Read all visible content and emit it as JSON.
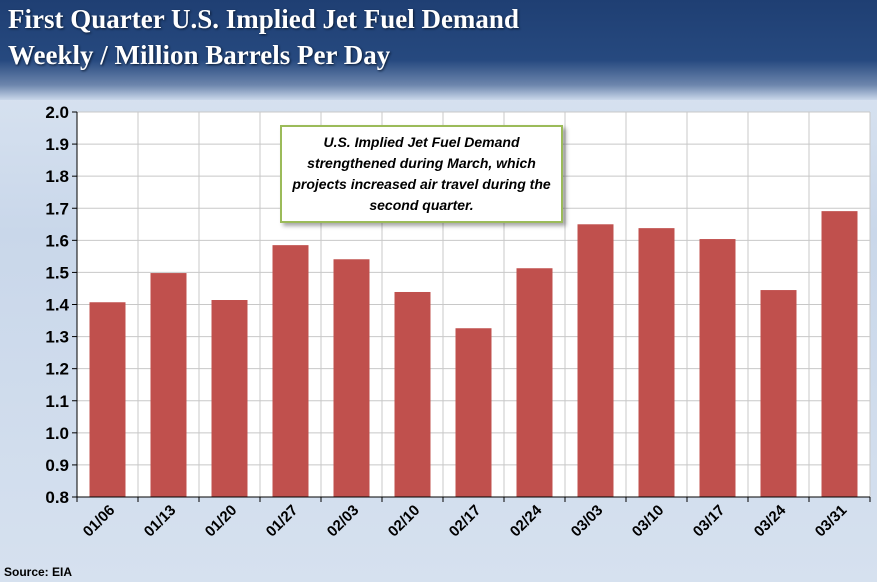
{
  "header": {
    "title": "First Quarter U.S. Implied Jet Fuel Demand",
    "subtitle": "Weekly / Million Barrels Per Day"
  },
  "annotation": "U.S. Implied Jet Fuel Demand strengthened during March, which projects increased air travel during the second quarter.",
  "source": "Source: EIA",
  "chart_data": {
    "type": "bar",
    "title": "First Quarter U.S. Implied Jet Fuel Demand",
    "subtitle": "Weekly / Million Barrels Per Day",
    "categories": [
      "01/06",
      "01/13",
      "01/20",
      "01/27",
      "02/03",
      "02/10",
      "02/17",
      "02/24",
      "03/03",
      "03/10",
      "03/17",
      "03/24",
      "03/31"
    ],
    "values": [
      1.407,
      1.498,
      1.414,
      1.585,
      1.541,
      1.439,
      1.326,
      1.513,
      1.65,
      1.638,
      1.604,
      1.445,
      1.691
    ],
    "ylim": [
      0.8,
      2.0
    ],
    "yticks": [
      "0.8",
      "0.9",
      "1.0",
      "1.1",
      "1.2",
      "1.3",
      "1.4",
      "1.5",
      "1.6",
      "1.7",
      "1.8",
      "1.9",
      "2.0"
    ],
    "grid": true,
    "bar_color": "#c0504d"
  }
}
